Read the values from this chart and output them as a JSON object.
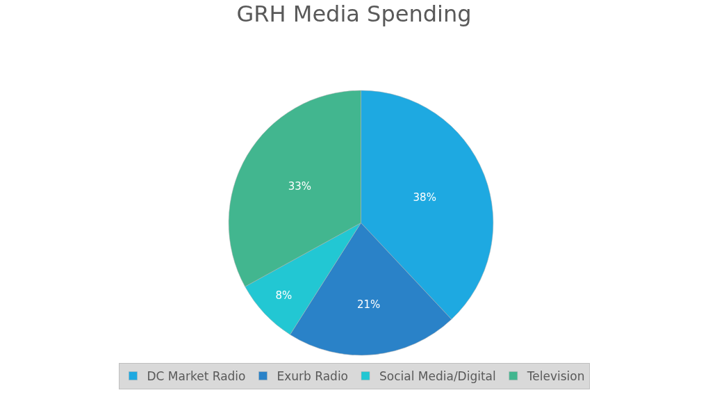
{
  "chart_data": {
    "type": "pie",
    "title": "GRH Media Spending",
    "categories": [
      "DC Market Radio",
      "Exurb Radio",
      "Social Media/Digital",
      "Television"
    ],
    "values": [
      38,
      21,
      8,
      33
    ],
    "value_labels": [
      "38%",
      "21%",
      "8%",
      "33%"
    ],
    "colors": [
      "#1ea9e1",
      "#2a82c8",
      "#22c7d3",
      "#42b68f"
    ],
    "legend": "bottom"
  }
}
